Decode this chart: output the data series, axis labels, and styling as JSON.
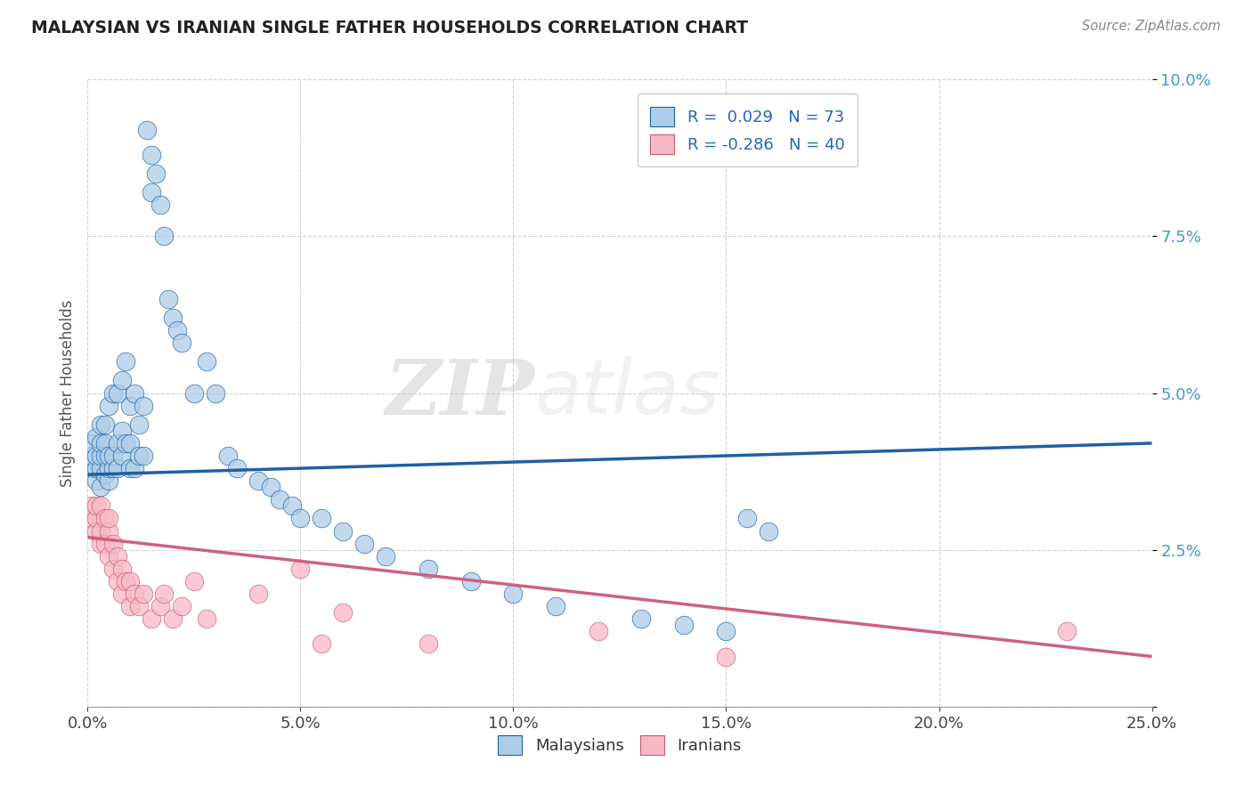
{
  "title": "MALAYSIAN VS IRANIAN SINGLE FATHER HOUSEHOLDS CORRELATION CHART",
  "source": "Source: ZipAtlas.com",
  "ylabel": "Single Father Households",
  "xlim": [
    0.0,
    0.25
  ],
  "ylim": [
    0.0,
    0.1
  ],
  "xticks": [
    0.0,
    0.05,
    0.1,
    0.15,
    0.2,
    0.25
  ],
  "yticks": [
    0.0,
    0.025,
    0.05,
    0.075,
    0.1
  ],
  "xticklabels": [
    "0.0%",
    "5.0%",
    "10.0%",
    "15.0%",
    "20.0%",
    "25.0%"
  ],
  "yticklabels": [
    "",
    "2.5%",
    "5.0%",
    "7.5%",
    "10.0%"
  ],
  "blue_R": "0.029",
  "blue_N": "73",
  "pink_R": "-0.286",
  "pink_N": "40",
  "blue_color": "#aecde8",
  "pink_color": "#f9b8c8",
  "blue_line_color": "#2060a0",
  "pink_line_color": "#d06080",
  "watermark_zip": "ZIP",
  "watermark_atlas": "atlas",
  "blue_trend_y0": 0.037,
  "blue_trend_y1": 0.042,
  "pink_trend_y0": 0.027,
  "pink_trend_y1": 0.008,
  "malaysian_x": [
    0.001,
    0.001,
    0.001,
    0.002,
    0.002,
    0.002,
    0.002,
    0.003,
    0.003,
    0.003,
    0.003,
    0.003,
    0.004,
    0.004,
    0.004,
    0.004,
    0.005,
    0.005,
    0.005,
    0.005,
    0.006,
    0.006,
    0.006,
    0.007,
    0.007,
    0.007,
    0.008,
    0.008,
    0.008,
    0.009,
    0.009,
    0.01,
    0.01,
    0.01,
    0.011,
    0.011,
    0.012,
    0.012,
    0.013,
    0.013,
    0.014,
    0.015,
    0.015,
    0.016,
    0.017,
    0.018,
    0.019,
    0.02,
    0.021,
    0.022,
    0.025,
    0.028,
    0.03,
    0.033,
    0.035,
    0.04,
    0.043,
    0.045,
    0.048,
    0.05,
    0.055,
    0.06,
    0.065,
    0.07,
    0.08,
    0.09,
    0.1,
    0.11,
    0.13,
    0.14,
    0.15,
    0.155,
    0.16
  ],
  "malaysian_y": [
    0.038,
    0.04,
    0.042,
    0.036,
    0.038,
    0.04,
    0.043,
    0.035,
    0.038,
    0.04,
    0.042,
    0.045,
    0.037,
    0.04,
    0.042,
    0.045,
    0.036,
    0.038,
    0.04,
    0.048,
    0.038,
    0.04,
    0.05,
    0.038,
    0.042,
    0.05,
    0.04,
    0.044,
    0.052,
    0.042,
    0.055,
    0.038,
    0.042,
    0.048,
    0.038,
    0.05,
    0.04,
    0.045,
    0.04,
    0.048,
    0.092,
    0.088,
    0.082,
    0.085,
    0.08,
    0.075,
    0.065,
    0.062,
    0.06,
    0.058,
    0.05,
    0.055,
    0.05,
    0.04,
    0.038,
    0.036,
    0.035,
    0.033,
    0.032,
    0.03,
    0.03,
    0.028,
    0.026,
    0.024,
    0.022,
    0.02,
    0.018,
    0.016,
    0.014,
    0.013,
    0.012,
    0.03,
    0.028
  ],
  "iranian_x": [
    0.001,
    0.001,
    0.002,
    0.002,
    0.002,
    0.003,
    0.003,
    0.003,
    0.004,
    0.004,
    0.005,
    0.005,
    0.005,
    0.006,
    0.006,
    0.007,
    0.007,
    0.008,
    0.008,
    0.009,
    0.01,
    0.01,
    0.011,
    0.012,
    0.013,
    0.015,
    0.017,
    0.018,
    0.02,
    0.022,
    0.025,
    0.028,
    0.04,
    0.05,
    0.055,
    0.06,
    0.08,
    0.12,
    0.15,
    0.23
  ],
  "iranian_y": [
    0.03,
    0.032,
    0.028,
    0.03,
    0.032,
    0.026,
    0.028,
    0.032,
    0.026,
    0.03,
    0.024,
    0.028,
    0.03,
    0.022,
    0.026,
    0.02,
    0.024,
    0.018,
    0.022,
    0.02,
    0.016,
    0.02,
    0.018,
    0.016,
    0.018,
    0.014,
    0.016,
    0.018,
    0.014,
    0.016,
    0.02,
    0.014,
    0.018,
    0.022,
    0.01,
    0.015,
    0.01,
    0.012,
    0.008,
    0.012
  ]
}
